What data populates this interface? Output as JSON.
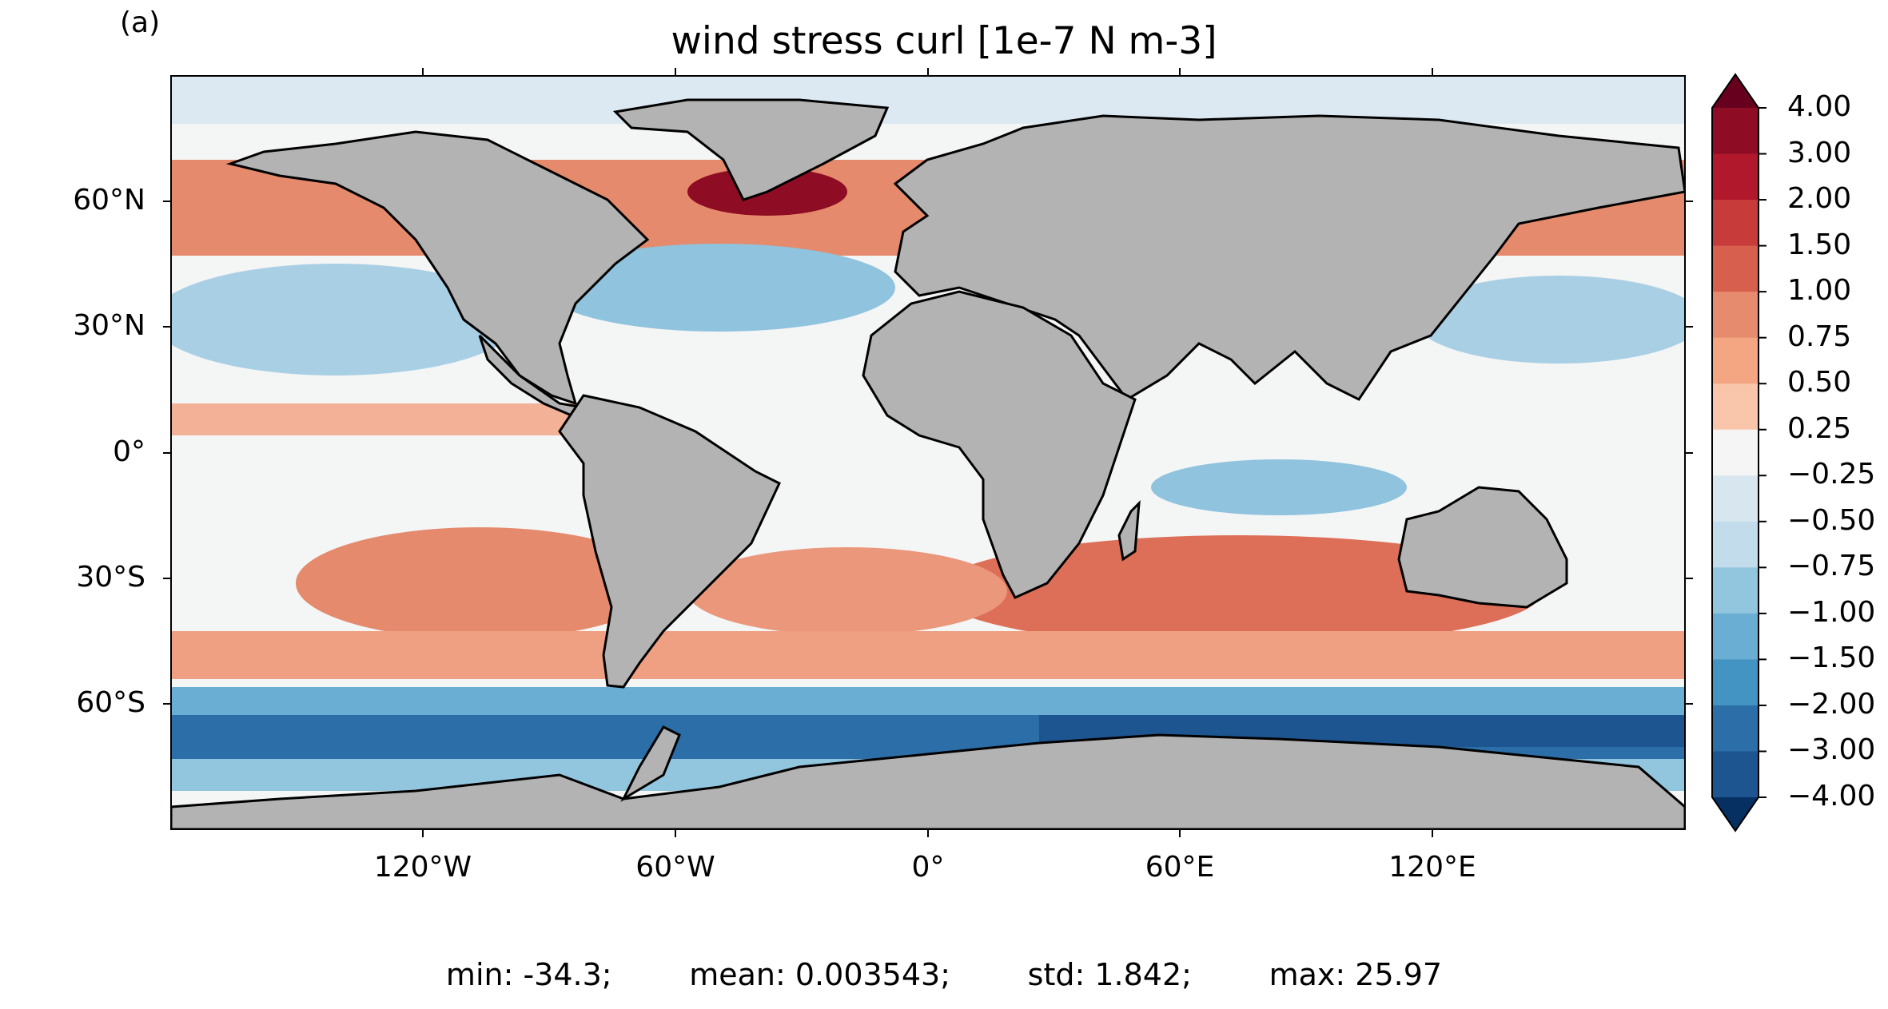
{
  "panel_label": "(a)",
  "title": "wind stress curl [1e-7 N m-3]",
  "axes": {
    "lat_ticks": [
      "60°N",
      "30°N",
      "0°",
      "30°S",
      "60°S"
    ],
    "lon_ticks": [
      "120°W",
      "60°W",
      "0°",
      "60°E",
      "120°E"
    ]
  },
  "colorbar": {
    "labels": [
      "4.00",
      "3.00",
      "2.00",
      "1.50",
      "1.00",
      "0.75",
      "0.50",
      "0.25",
      "−0.25",
      "−0.50",
      "−0.75",
      "−1.00",
      "−1.50",
      "−2.00",
      "−3.00",
      "−4.00"
    ],
    "colors": [
      "#67001f",
      "#8e0d25",
      "#b2182b",
      "#c73c3b",
      "#d6604d",
      "#e78b6e",
      "#f4a582",
      "#f9c6ab",
      "#f5f5f5",
      "#d8e6f0",
      "#c2dcec",
      "#92c5de",
      "#6aaed3",
      "#4393c3",
      "#2b6ea8",
      "#1d5591",
      "#053061"
    ],
    "extend": "both"
  },
  "stats": {
    "min": "min: -34.3;",
    "mean": "mean: 0.003543;",
    "std": "std: 1.842;",
    "max": "max: 25.97"
  },
  "colors": {
    "land": "#b3b3b3",
    "ocean_neutral": "#f4f5f5",
    "coast": "#000000"
  }
}
